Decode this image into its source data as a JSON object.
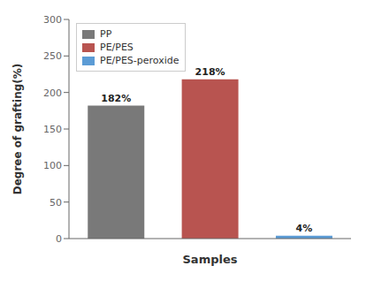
{
  "chart_data": {
    "type": "bar",
    "categories": [
      "PP",
      "PE/PES",
      "PE/PES-peroxide"
    ],
    "values": [
      182,
      218,
      4
    ],
    "value_labels": [
      "182%",
      "218%",
      "4%"
    ],
    "colors": [
      "#797979",
      "#b85450",
      "#5b9bd5"
    ],
    "data_labels": true,
    "xlabel": "Samples",
    "ylabel": "Degree of grafting(%)",
    "ylim": [
      0,
      300
    ],
    "yticks": [
      0,
      50,
      100,
      150,
      200,
      250,
      300
    ],
    "legend": "upper left",
    "tick_labels": "y",
    "grid": false
  }
}
